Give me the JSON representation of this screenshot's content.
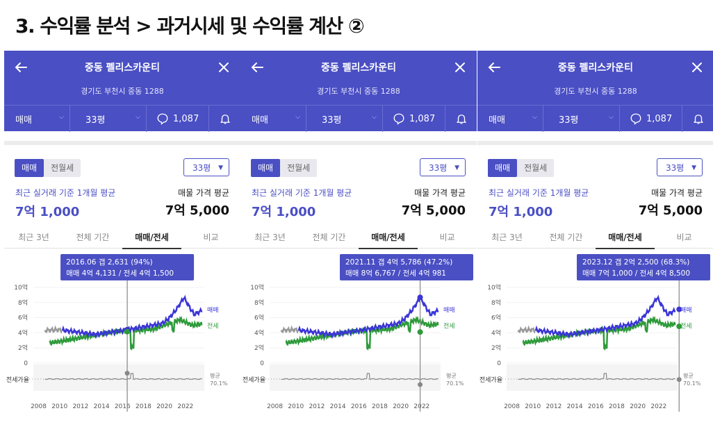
{
  "page_title": "3. 수익률 분석 > 과거시세 및 수익률 계산 ②",
  "colors": {
    "header": "#4a4fc4",
    "trade_line": "#3b35d6",
    "jeonse_line": "#2e9a3a",
    "ratio_line": "#888888",
    "tooltip": "#4a4fc4"
  },
  "panels": [
    {
      "header": {
        "title": "중동 펠리스카운티",
        "address": "경기도 부천시 중동 1288",
        "trade_type": "매매",
        "size": "33평",
        "comment_count": "1,087"
      },
      "toggle": [
        "매매",
        "전월세"
      ],
      "size_select": "33평",
      "recent_label": "최근 실거래 기준 1개월 평균",
      "recent_price": "7억 1,000",
      "listing_label": "매물 가격 평균",
      "listing_price": "7억 5,000",
      "tabs": [
        "최근 3년",
        "전체 기간",
        "매매/전세",
        "비교"
      ],
      "chart_data": {
        "type": "line",
        "x_ticks": [
          "2008",
          "2010",
          "2012",
          "2014",
          "2016",
          "2018",
          "2020",
          "2022"
        ],
        "y_ticks": [
          "10억",
          "8억",
          "6억",
          "4억",
          "2억",
          "0"
        ],
        "ylim": [
          0,
          10
        ],
        "x_range": [
          2007.5,
          2023.8
        ],
        "series_labels": [
          "매매",
          "전세"
        ],
        "ratio_label": "전세가율",
        "avg_label": "평균",
        "avg_value": "70.1%",
        "marker_date": 2016.45,
        "tooltip": {
          "line1": "2016.06  갭 2,631 (94%)",
          "line2": "매매 4억 4,131 / 전세 4억 1,500"
        },
        "marker_trade": 4.41,
        "marker_jeonse": 4.15,
        "marker_ratio": 94
      }
    },
    {
      "header": {
        "title": "중동 펠리스카운티",
        "address": "경기도 부천시 중동 1288",
        "trade_type": "매매",
        "size": "33평",
        "comment_count": "1,087"
      },
      "toggle": [
        "매매",
        "전월세"
      ],
      "size_select": "33평",
      "recent_label": "최근 실거래 기준 1개월 평균",
      "recent_price": "7억 1,000",
      "listing_label": "매물 가격 평균",
      "listing_price": "7억 5,000",
      "tabs": [
        "최근 3년",
        "전체 기간",
        "매매/전세",
        "비교"
      ],
      "chart_data": {
        "type": "line",
        "x_ticks": [
          "2008",
          "2010",
          "2012",
          "2014",
          "2016",
          "2018",
          "2020",
          "2022"
        ],
        "y_ticks": [
          "10억",
          "8억",
          "6억",
          "4억",
          "2억",
          "0"
        ],
        "ylim": [
          0,
          10
        ],
        "x_range": [
          2007.5,
          2023.8
        ],
        "series_labels": [
          "매매",
          "전세"
        ],
        "ratio_label": "전세가율",
        "avg_label": "평균",
        "avg_value": "70.1%",
        "marker_date": 2021.85,
        "tooltip": {
          "line1": "2021.11   갭 4억 5,786 (47.2%)",
          "line2": "매매 8억 6,767 / 전세 4억 981"
        },
        "marker_trade": 8.68,
        "marker_jeonse": 4.1,
        "marker_ratio": 47
      }
    },
    {
      "header": {
        "title": "중동 펠리스카운티",
        "address": "경기도 부천시 중동 1288",
        "trade_type": "매매",
        "size": "33평",
        "comment_count": "1,087"
      },
      "toggle": [
        "매매",
        "전월세"
      ],
      "size_select": "33평",
      "recent_label": "최근 실거래 기준 1개월 평균",
      "recent_price": "7억 1,000",
      "listing_label": "매물 가격 평균",
      "listing_price": "7억 5,000",
      "tabs": [
        "최근 3년",
        "전체 기간",
        "매매/전세",
        "비교"
      ],
      "chart_data": {
        "type": "line",
        "x_ticks": [
          "2008",
          "2010",
          "2012",
          "2014",
          "2016",
          "2018",
          "2020",
          "2022"
        ],
        "y_ticks": [
          "10억",
          "8억",
          "6억",
          "4억",
          "2억",
          "0"
        ],
        "ylim": [
          0,
          10
        ],
        "x_range": [
          2007.5,
          2023.8
        ],
        "series_labels": [
          "매매",
          "전세"
        ],
        "ratio_label": "전세가율",
        "avg_label": "평균",
        "avg_value": "70.1%",
        "marker_date": 2023.95,
        "tooltip": {
          "line1": "2023.12  갭 2억 2,500 (68.3%)",
          "line2": "매매 7억 1,000 / 전세 4억 8,500"
        },
        "marker_trade": 7.1,
        "marker_jeonse": 4.85,
        "marker_ratio": 68
      }
    }
  ]
}
